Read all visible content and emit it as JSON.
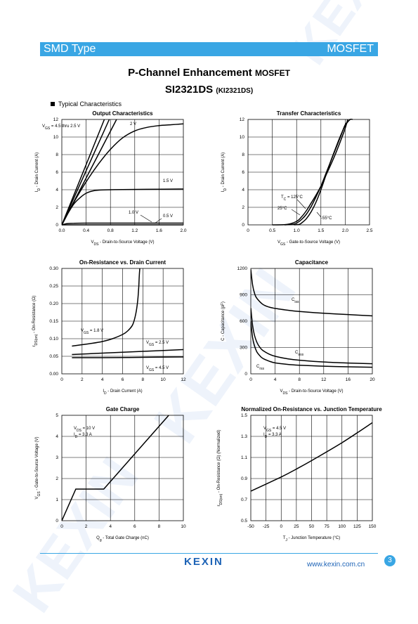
{
  "header": {
    "left": "SMD Type",
    "right": "MOSFET"
  },
  "title": {
    "main": "P-Channel Enhancement",
    "main_suffix": "MOSFET",
    "part": "SI2321DS",
    "alt": "(KI2321DS)"
  },
  "section": "Typical  Characteristics",
  "watermark": "KEXIN",
  "footer": {
    "logo": "KEXIN",
    "url": "www.kexin.com.cn",
    "page": "3"
  },
  "colors": {
    "accent": "#39a6e4",
    "brand": "#1d63b6",
    "line": "#000000"
  },
  "chart_data": [
    {
      "type": "line",
      "title": "Output Characteristics",
      "xlabel": "V_DS - Drain-to-Source Voltage (V)",
      "ylabel": "I_D - Drain Current (A)",
      "xlim": [
        0,
        2.0
      ],
      "ylim": [
        0,
        12
      ],
      "xticks": [
        "0.0",
        "0.4",
        "0.8",
        "1.2",
        "1.6",
        "2.0"
      ],
      "yticks": [
        "0",
        "2",
        "4",
        "6",
        "8",
        "10",
        "12"
      ],
      "series": [
        {
          "name": "V_GS = 4.5 thru 2.5 V (a)",
          "x": [
            0,
            0.7
          ],
          "y": [
            0,
            12
          ]
        },
        {
          "name": "V_GS = 4.5 thru 2.5 V (b)",
          "x": [
            0,
            0.78
          ],
          "y": [
            0,
            12
          ]
        },
        {
          "name": "V_GS = 4.5 thru 2.5 V (c)",
          "x": [
            0,
            0.9
          ],
          "y": [
            0,
            12
          ]
        },
        {
          "name": "2 V",
          "x": [
            0,
            0.2,
            0.4,
            0.6,
            0.8,
            1.0,
            1.2,
            1.4,
            1.6,
            1.8,
            2.0
          ],
          "y": [
            0,
            2.6,
            4.9,
            6.9,
            8.6,
            9.9,
            10.7,
            11.1,
            11.3,
            11.4,
            11.5
          ]
        },
        {
          "name": "1.5 V",
          "x": [
            0,
            0.1,
            0.2,
            0.3,
            0.4,
            0.5,
            0.6,
            0.8,
            1.0,
            1.4,
            2.0
          ],
          "y": [
            0,
            1.3,
            2.4,
            3.1,
            3.6,
            3.85,
            3.95,
            4.0,
            4.02,
            4.05,
            4.08
          ]
        },
        {
          "name": "1.0 V",
          "x": [
            0,
            0.05,
            0.1,
            0.2,
            0.4,
            1.0,
            2.0
          ],
          "y": [
            0,
            0.1,
            0.15,
            0.18,
            0.2,
            0.2,
            0.2
          ]
        },
        {
          "name": "0.5 V",
          "x": [
            0,
            2.0
          ],
          "y": [
            0,
            0
          ]
        }
      ],
      "annotations": [
        "V_GS = 4.5 thru 2.5 V",
        "2 V",
        "1.5 V",
        "1.0 V",
        "0.5 V"
      ]
    },
    {
      "type": "line",
      "title": "Transfer Characteristics",
      "xlabel": "V_GS - Gate-to-Source Voltage (V)",
      "ylabel": "I_D - Drain Current (A)",
      "xlim": [
        0,
        2.5
      ],
      "ylim": [
        0,
        12
      ],
      "xticks": [
        "0",
        "0.5",
        "1.0",
        "1.5",
        "2.0",
        "2.5"
      ],
      "yticks": [
        "0",
        "2",
        "4",
        "6",
        "8",
        "10",
        "12"
      ],
      "series": [
        {
          "name": "T_C = 125°C",
          "x": [
            0.5,
            0.8,
            1.0,
            1.1,
            1.2,
            1.3,
            1.4,
            1.5,
            1.6,
            1.7,
            1.8,
            1.9,
            2.0,
            2.05
          ],
          "y": [
            0,
            0.05,
            0.4,
            0.9,
            1.6,
            2.5,
            3.4,
            4.4,
            5.6,
            6.8,
            8.1,
            9.5,
            11.0,
            12
          ]
        },
        {
          "name": "25°C",
          "x": [
            0.75,
            0.9,
            1.0,
            1.1,
            1.2,
            1.3,
            1.4,
            1.5,
            1.6,
            1.7,
            1.8,
            1.9,
            2.0,
            2.1
          ],
          "y": [
            0,
            0.05,
            0.2,
            0.6,
            1.2,
            2.1,
            3.2,
            4.4,
            5.8,
            7.2,
            8.6,
            10.0,
            11.4,
            12
          ]
        },
        {
          "name": "-55°C",
          "x": [
            0.95,
            1.05,
            1.1,
            1.2,
            1.3,
            1.4,
            1.5,
            1.6,
            1.7,
            1.8,
            1.9,
            2.0,
            2.1,
            2.15
          ],
          "y": [
            0,
            0.05,
            0.2,
            0.7,
            1.5,
            2.6,
            4.0,
            5.6,
            7.2,
            8.7,
            10.1,
            11.3,
            12,
            12
          ]
        }
      ],
      "annotations": [
        "T_C = 125°C",
        "25°C",
        "-55°C"
      ]
    },
    {
      "type": "line",
      "title": "On-Resistance vs. Drain Current",
      "xlabel": "I_D - Drain Current (A)",
      "ylabel": "r_DS(on) - On-Resistance (Ω)",
      "xlim": [
        0,
        12
      ],
      "ylim": [
        0,
        0.3
      ],
      "xticks": [
        "0",
        "2",
        "4",
        "6",
        "8",
        "10",
        "12"
      ],
      "yticks": [
        "0.00",
        "0.05",
        "0.10",
        "0.15",
        "0.20",
        "0.25",
        "0.30"
      ],
      "series": [
        {
          "name": "V_GS = 1.8 V",
          "x": [
            1,
            2,
            3,
            4,
            5,
            6,
            6.5,
            7,
            7.3,
            7.5,
            7.6,
            7.65,
            7.7
          ],
          "y": [
            0.079,
            0.083,
            0.087,
            0.092,
            0.1,
            0.112,
            0.122,
            0.14,
            0.17,
            0.21,
            0.25,
            0.28,
            0.3
          ]
        },
        {
          "name": "V_GS = 2.5 V",
          "x": [
            1,
            4,
            8,
            12
          ],
          "y": [
            0.055,
            0.059,
            0.064,
            0.069
          ]
        },
        {
          "name": "V_GS = 4.5 V",
          "x": [
            1,
            4,
            8,
            12
          ],
          "y": [
            0.046,
            0.046,
            0.047,
            0.048
          ]
        }
      ],
      "annotations": [
        "V_GS = 1.8 V",
        "V_GS = 2.5 V",
        "V_GS = 4.5 V"
      ]
    },
    {
      "type": "line",
      "title": "Capacitance",
      "xlabel": "V_DS - Drain-to-Source Voltage (V)",
      "ylabel": "C - Capacitance (pF)",
      "xlim": [
        0,
        20
      ],
      "ylim": [
        0,
        1200
      ],
      "xticks": [
        "0",
        "4",
        "8",
        "12",
        "16",
        "20"
      ],
      "yticks": [
        "0",
        "300",
        "600",
        "900",
        "1200"
      ],
      "series": [
        {
          "name": "C_iss",
          "x": [
            0,
            0.3,
            0.6,
            1,
            2,
            3,
            4,
            6,
            8,
            12,
            16,
            20
          ],
          "y": [
            1190,
            1010,
            920,
            860,
            790,
            760,
            745,
            725,
            710,
            690,
            675,
            660
          ]
        },
        {
          "name": "C_oss",
          "x": [
            0,
            0.3,
            0.6,
            1,
            1.5,
            2,
            3,
            4,
            6,
            8,
            12,
            16,
            20
          ],
          "y": [
            750,
            550,
            440,
            360,
            300,
            265,
            225,
            200,
            172,
            155,
            135,
            123,
            115
          ]
        },
        {
          "name": "C_rss",
          "x": [
            0,
            0.3,
            0.6,
            1,
            1.5,
            2,
            3,
            4,
            6,
            8,
            12,
            16,
            20
          ],
          "y": [
            600,
            410,
            320,
            250,
            205,
            175,
            145,
            125,
            108,
            98,
            87,
            80,
            75
          ]
        }
      ],
      "annotations": [
        "C_iss",
        "C_oss",
        "C_rss"
      ]
    },
    {
      "type": "line",
      "title": "Gate Charge",
      "xlabel": "Q_g - Total Gate Charge (nC)",
      "ylabel": "V_GS - Gate-to-Source Voltage (V)",
      "xlim": [
        0,
        10
      ],
      "ylim": [
        0,
        5
      ],
      "xticks": [
        "0",
        "2",
        "4",
        "6",
        "8",
        "10"
      ],
      "yticks": [
        "0",
        "1",
        "2",
        "3",
        "4",
        "5"
      ],
      "series": [
        {
          "name": "V_GS",
          "x": [
            0,
            1.15,
            3.45,
            8.8
          ],
          "y": [
            0,
            1.5,
            1.5,
            5
          ]
        }
      ],
      "annotations": [
        "V_DS = 10 V",
        "I_D = 3.3 A"
      ]
    },
    {
      "type": "line",
      "title": "Normalized On-Resistance vs. Junction Temperature",
      "xlabel": "T_J - Junction Temperature (°C)",
      "ylabel": "r_DS(on) - On-Resistance (Ω) (Normalized)",
      "xlim": [
        -50,
        150
      ],
      "ylim": [
        0.5,
        1.5
      ],
      "xticks": [
        "-50",
        "-25",
        "0",
        "25",
        "50",
        "75",
        "100",
        "125",
        "150"
      ],
      "yticks": [
        "0.5",
        "0.7",
        "0.9",
        "1.1",
        "1.3",
        "1.5"
      ],
      "series": [
        {
          "name": "r_DS(on)",
          "x": [
            -50,
            0,
            25,
            50,
            100,
            150
          ],
          "y": [
            0.78,
            0.915,
            0.99,
            1.07,
            1.24,
            1.43
          ]
        }
      ],
      "annotations": [
        "V_GS = 4.5 V",
        "I_D = 3.3 A"
      ]
    }
  ]
}
